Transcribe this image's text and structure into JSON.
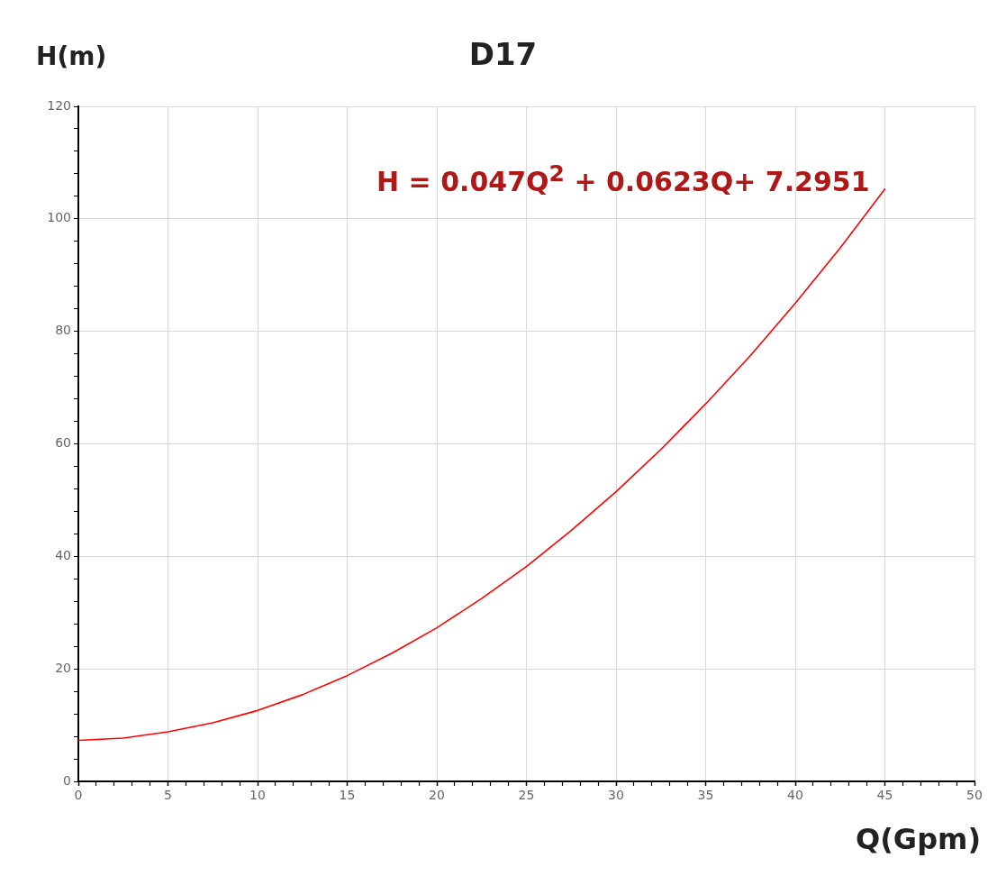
{
  "chart_data": {
    "type": "line",
    "title": "D17",
    "xlabel": "Q(Gpm)",
    "ylabel": "H(m)",
    "x": [
      0,
      2.5,
      5,
      7.5,
      10,
      12.5,
      15,
      17.5,
      20,
      22.5,
      25,
      27.5,
      30,
      32.5,
      35,
      37.5,
      40,
      42.5,
      45
    ],
    "series": [
      {
        "color": "#ff0000",
        "values": [
          7.3,
          7.7,
          8.8,
          10.4,
          12.6,
          15.4,
          18.8,
          22.8,
          27.3,
          32.5,
          38.2,
          44.6,
          51.5,
          59.0,
          67.1,
          75.7,
          85.0,
          94.8,
          105.3
        ]
      }
    ],
    "annotations": [
      "H = 0.047Q$^{2}$ + 0.0623Q+ 7.2951"
    ],
    "xlim": [
      0,
      50
    ],
    "xticks": [
      0,
      {
        "value": 1,
        "label": null
      },
      {
        "value": 2,
        "label": null
      },
      {
        "value": 3,
        "label": null
      },
      {
        "value": 4,
        "label": null
      },
      5,
      {
        "value": 6,
        "label": null
      },
      {
        "value": 7,
        "label": null
      },
      {
        "value": 8,
        "label": null
      },
      {
        "value": 9,
        "label": null
      },
      10,
      {
        "value": 11,
        "label": null
      },
      {
        "value": 12,
        "label": null
      },
      {
        "value": 13,
        "label": null
      },
      {
        "value": 14,
        "label": null
      },
      15,
      {
        "value": 16,
        "label": null
      },
      {
        "value": 17,
        "label": null
      },
      {
        "value": 18,
        "label": null
      },
      {
        "value": 19,
        "label": null
      },
      20,
      {
        "value": 21,
        "label": null
      },
      {
        "value": 22,
        "label": null
      },
      {
        "value": 23,
        "label": null
      },
      {
        "value": 24,
        "label": null
      },
      25,
      {
        "value": 26,
        "label": null
      },
      {
        "value": 27,
        "label": null
      },
      {
        "value": 28,
        "label": null
      },
      {
        "value": 29,
        "label": null
      },
      30,
      {
        "value": 31,
        "label": null
      },
      {
        "value": 32,
        "label": null
      },
      {
        "value": 33,
        "label": null
      },
      {
        "value": 34,
        "label": null
      },
      35,
      {
        "value": 36,
        "label": null
      },
      {
        "value": 37,
        "label": null
      },
      {
        "value": 38,
        "label": null
      },
      {
        "value": 39,
        "label": null
      },
      40,
      {
        "value": 41,
        "label": null
      },
      {
        "value": 42,
        "label": null
      },
      {
        "value": 43,
        "label": null
      },
      {
        "value": 44,
        "label": null
      },
      45,
      {
        "value": 46,
        "label": null
      },
      {
        "value": 47,
        "label": null
      },
      {
        "value": 48,
        "label": null
      },
      {
        "value": 49,
        "label": null
      },
      50
    ],
    "ylim": [
      0,
      120
    ],
    "yticks": [
      0,
      {
        "value": 4,
        "label": null
      },
      {
        "value": 8,
        "label": null
      },
      {
        "value": 12,
        "label": null
      },
      {
        "value": 16,
        "label": null
      },
      20,
      {
        "value": 24,
        "label": null
      },
      {
        "value": 28,
        "label": null
      },
      {
        "value": 32,
        "label": null
      },
      {
        "value": 36,
        "label": null
      },
      40,
      {
        "value": 44,
        "label": null
      },
      {
        "value": 48,
        "label": null
      },
      {
        "value": 52,
        "label": null
      },
      {
        "value": 56,
        "label": null
      },
      60,
      {
        "value": 64,
        "label": null
      },
      {
        "value": 68,
        "label": null
      },
      {
        "value": 72,
        "label": null
      },
      {
        "value": 76,
        "label": null
      },
      80,
      {
        "value": 84,
        "label": null
      },
      {
        "value": 88,
        "label": null
      },
      {
        "value": 92,
        "label": null
      },
      {
        "value": 96,
        "label": null
      },
      100,
      {
        "value": 104,
        "label": null
      },
      {
        "value": 108,
        "label": null
      },
      {
        "value": 112,
        "label": null
      },
      {
        "value": 116,
        "label": null
      },
      120
    ],
    "grid": true,
    "legend": false,
    "marker": "none",
    "line_style": "solid"
  }
}
